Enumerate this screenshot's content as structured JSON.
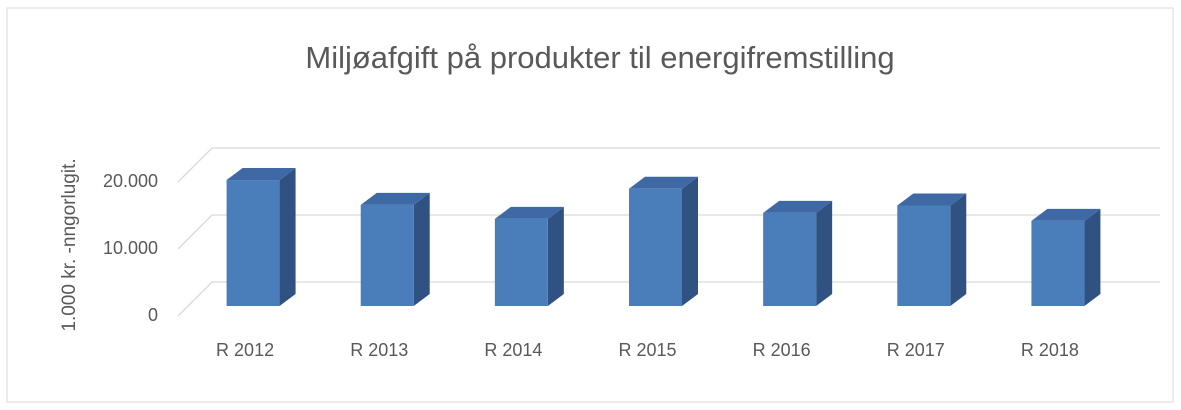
{
  "chart_data": {
    "type": "bar3d",
    "title": "Miljøafgift på produkter til energifremstilling",
    "y_label": "1.000 kr. -nngorlugit.",
    "categories": [
      "R 2012",
      "R 2013",
      "R 2014",
      "R 2015",
      "R 2016",
      "R 2017",
      "R 2018"
    ],
    "values": [
      18800,
      15100,
      13000,
      17500,
      13900,
      15000,
      12700
    ],
    "color": "#4a7ebb",
    "ylim": [
      0,
      20000
    ],
    "yticks": [
      0,
      {
        "value": 10000,
        "label": "10.000"
      },
      {
        "value": 20000,
        "label": "20.000"
      }
    ],
    "grid": true
  }
}
